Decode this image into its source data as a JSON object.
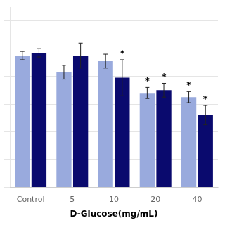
{
  "chart_data": {
    "type": "bar",
    "categories": [
      "Control",
      "5",
      "10",
      "20",
      "40"
    ],
    "series": [
      {
        "color": "#99aadd",
        "values": [
          95,
          83,
          91,
          68,
          65
        ],
        "errors": [
          3,
          5,
          5,
          4,
          4
        ],
        "significance": [
          null,
          null,
          null,
          "*",
          "*"
        ]
      },
      {
        "color": "#0a0a6e",
        "values": [
          97,
          95,
          79,
          70,
          52
        ],
        "errors": [
          3,
          9,
          13,
          5,
          7
        ],
        "significance": [
          null,
          null,
          "*",
          "*",
          "*"
        ]
      }
    ],
    "xlabel": "D-Glucose(mg/mL)",
    "ylim": [
      0,
      130
    ],
    "yticks": [
      0,
      20,
      40,
      60,
      80,
      100,
      120
    ],
    "grid": true,
    "tick_labels": "x"
  }
}
